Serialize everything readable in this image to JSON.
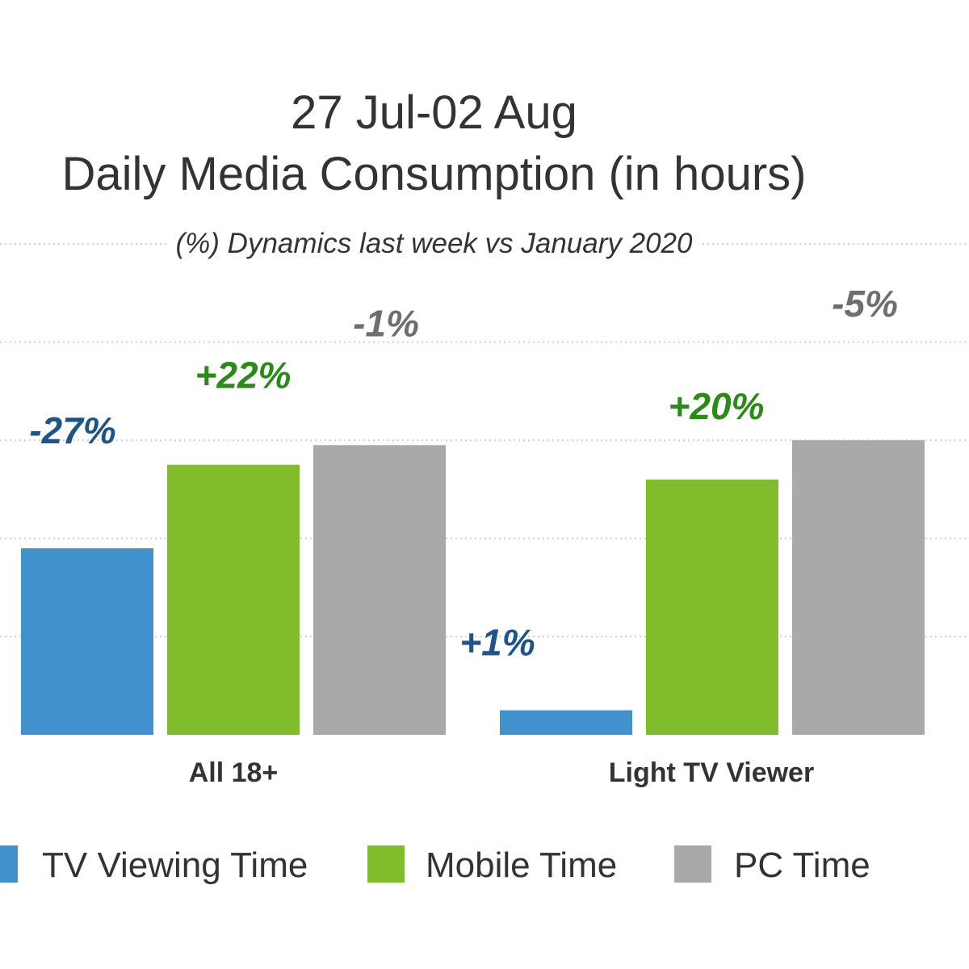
{
  "chart_data": {
    "type": "bar",
    "title": "27 Jul-02 Aug",
    "subtitle": "Daily Media Consumption (in hours)",
    "note": "(%) Dynamics last week  vs January 2020",
    "categories": [
      "All 18+",
      "Light TV Viewer"
    ],
    "series": [
      {
        "name": "TV Viewing Time",
        "color": "#4191cc",
        "label_color": "#1f5585",
        "values": [
          1.9,
          0.25
        ],
        "change_labels": [
          "-27%",
          "+1%"
        ]
      },
      {
        "name": "Mobile Time",
        "color": "#80bc2b",
        "label_color": "#2b8a1a",
        "values": [
          2.75,
          2.6
        ],
        "change_labels": [
          "+22%",
          "+20%"
        ]
      },
      {
        "name": "PC Time",
        "color": "#a9a9a9",
        "label_color": "#6e6e6e",
        "values": [
          2.95,
          3.0
        ],
        "change_labels": [
          "-1%",
          "-5%"
        ]
      }
    ],
    "ylim": [
      0,
      5
    ],
    "grid": true,
    "legend_position": "bottom"
  }
}
